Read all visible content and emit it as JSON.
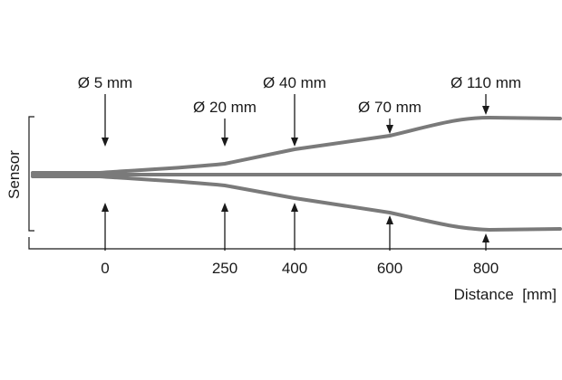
{
  "diagram": {
    "sensor_label": "Sensor",
    "axis_title": "Distance  [mm]",
    "beam_color": "#7a7a7a",
    "ticks": [
      {
        "distance": "0",
        "diameter": "Ø 5 mm"
      },
      {
        "distance": "250",
        "diameter": "Ø 20 mm"
      },
      {
        "distance": "400",
        "diameter": "Ø 40 mm"
      },
      {
        "distance": "600",
        "diameter": "Ø 70 mm"
      },
      {
        "distance": "800",
        "diameter": "Ø 110 mm"
      }
    ]
  }
}
